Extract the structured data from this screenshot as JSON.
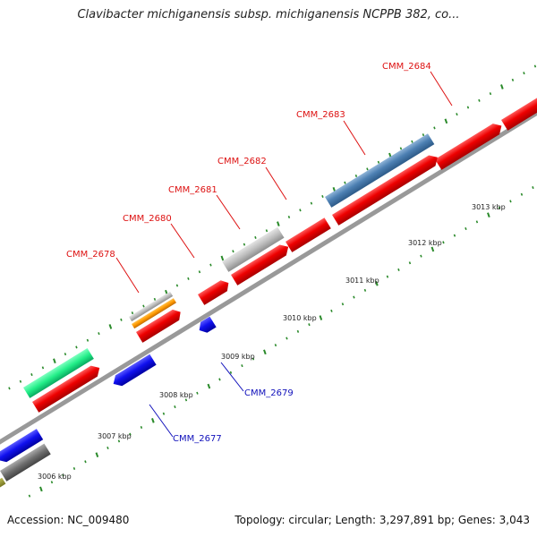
{
  "title": "Clavibacter michiganensis subsp. michiganensis NCPPB 382, co...",
  "footer": {
    "accession": "Accession: NC_009480",
    "summary": "Topology: circular; Length: 3,297,891 bp; Genes: 3,043"
  },
  "colors": {
    "forward_label": "#dd1111",
    "reverse_label": "#1111bb",
    "backbone": "#888888",
    "tick": "#2a8a2a"
  },
  "kbp_labels": [
    "3006 kbp",
    "3007 kbp",
    "3008 kbp",
    "3009 kbp",
    "3010 kbp",
    "3011 kbp",
    "3012 kbp",
    "3013 kbp"
  ],
  "gene_labels": [
    {
      "name": "CMM_2677",
      "strand": "reverse"
    },
    {
      "name": "CMM_2678",
      "strand": "forward"
    },
    {
      "name": "CMM_2679",
      "strand": "reverse"
    },
    {
      "name": "CMM_2680",
      "strand": "forward"
    },
    {
      "name": "CMM_2681",
      "strand": "forward"
    },
    {
      "name": "CMM_2682",
      "strand": "forward"
    },
    {
      "name": "CMM_2683",
      "strand": "forward"
    },
    {
      "name": "CMM_2684",
      "strand": "forward"
    }
  ]
}
